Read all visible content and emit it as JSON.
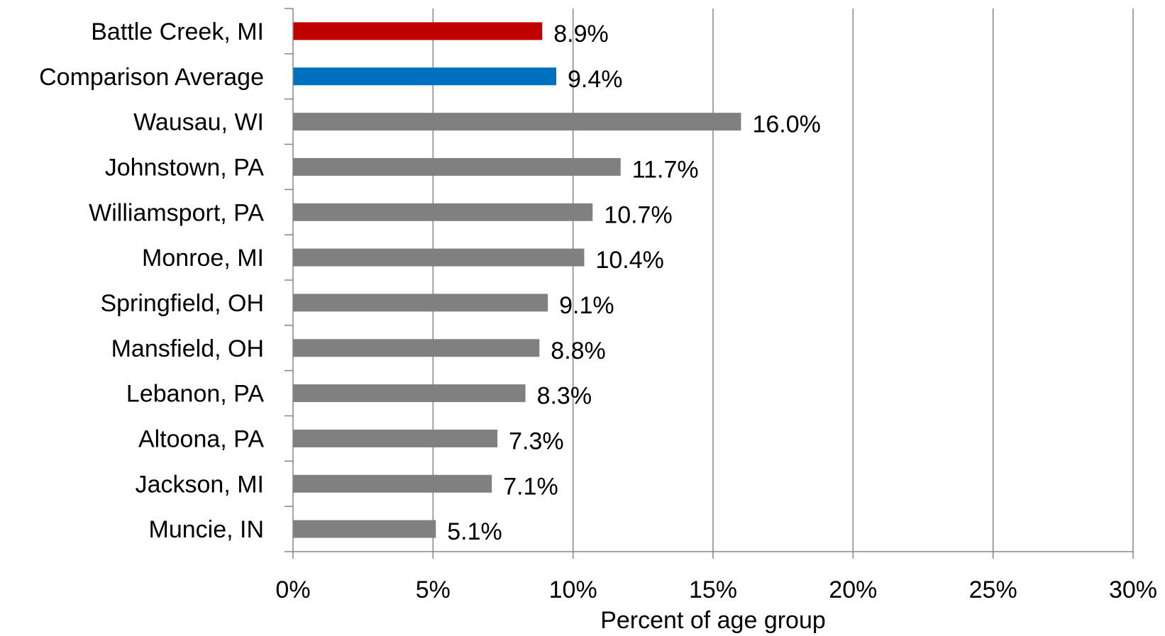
{
  "chart_data": {
    "type": "bar",
    "orientation": "horizontal",
    "categories": [
      "Battle Creek, MI",
      "Comparison Average",
      "Wausau, WI",
      "Johnstown, PA",
      "Williamsport, PA",
      "Monroe, MI",
      "Springfield, OH",
      "Mansfield, OH",
      "Lebanon, PA",
      "Altoona, PA",
      "Jackson, MI",
      "Muncie, IN"
    ],
    "values": [
      8.9,
      9.4,
      16.0,
      11.7,
      10.7,
      10.4,
      9.1,
      8.8,
      8.3,
      7.3,
      7.1,
      5.1
    ],
    "value_labels": [
      "8.9%",
      "9.4%",
      "16.0%",
      "11.7%",
      "10.7%",
      "10.4%",
      "9.1%",
      "8.8%",
      "8.3%",
      "7.3%",
      "7.1%",
      "5.1%"
    ],
    "bar_colors": [
      "#c00000",
      "#0070c0",
      "#808080",
      "#808080",
      "#808080",
      "#808080",
      "#808080",
      "#808080",
      "#808080",
      "#808080",
      "#808080",
      "#808080"
    ],
    "title": "",
    "xlabel": "Percent of age group",
    "ylabel": "",
    "xlim": [
      0,
      30
    ],
    "xticks": [
      0,
      5,
      10,
      15,
      20,
      25,
      30
    ],
    "xtick_labels": [
      "0%",
      "5%",
      "10%",
      "15%",
      "20%",
      "25%",
      "30%"
    ],
    "grid": "vertical",
    "gridline_color": "#868686",
    "legend": "none"
  }
}
